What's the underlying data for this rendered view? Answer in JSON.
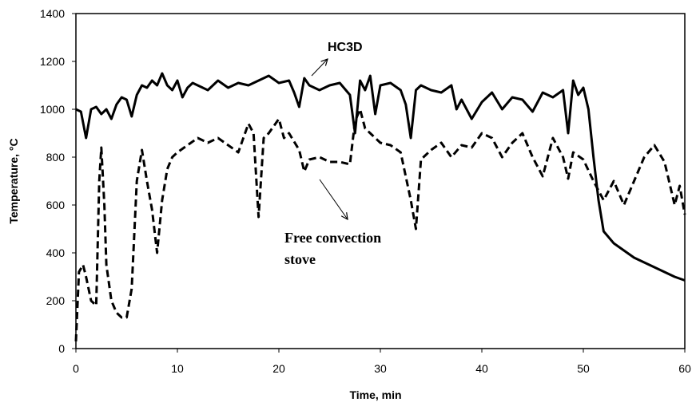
{
  "chart_data": {
    "type": "line",
    "x_label": "Time, min",
    "y_label": "Temperature, °C",
    "xlim": [
      0,
      60
    ],
    "xticks": [
      0,
      10,
      20,
      30,
      40,
      50,
      60
    ],
    "ylim": [
      0,
      1400
    ],
    "yticks": [
      0,
      200,
      400,
      600,
      800,
      1000,
      1200,
      1400
    ],
    "grid": false,
    "series": [
      {
        "name": "HC3D",
        "color": "#000000",
        "dash": "solid",
        "x": [
          0,
          0.5,
          1,
          1.5,
          2,
          2.5,
          3,
          3.5,
          4,
          4.5,
          5,
          5.5,
          6,
          6.5,
          7,
          7.5,
          8,
          8.5,
          9,
          9.5,
          10,
          10.5,
          11,
          11.5,
          12,
          13,
          14,
          15,
          16,
          17,
          18,
          19,
          20,
          21,
          21.5,
          22,
          22.5,
          23,
          24,
          25,
          26,
          27,
          27.5,
          28,
          28.5,
          29,
          29.5,
          30,
          31,
          32,
          32.5,
          33,
          33.5,
          34,
          35,
          36,
          37,
          37.5,
          38,
          39,
          40,
          41,
          42,
          43,
          44,
          45,
          46,
          47,
          48,
          48.5,
          49,
          49.5,
          50,
          50.5,
          51,
          51.5,
          52,
          53,
          54,
          55,
          56,
          57,
          58,
          59,
          60
        ],
        "values": [
          1000,
          990,
          880,
          1000,
          1010,
          980,
          1000,
          960,
          1020,
          1050,
          1040,
          970,
          1060,
          1100,
          1090,
          1120,
          1100,
          1150,
          1100,
          1080,
          1120,
          1050,
          1090,
          1110,
          1100,
          1080,
          1120,
          1090,
          1110,
          1100,
          1120,
          1140,
          1110,
          1120,
          1070,
          1010,
          1130,
          1100,
          1080,
          1100,
          1110,
          1060,
          900,
          1120,
          1080,
          1140,
          980,
          1100,
          1110,
          1080,
          1020,
          880,
          1080,
          1100,
          1080,
          1070,
          1100,
          1000,
          1040,
          960,
          1030,
          1070,
          1000,
          1050,
          1040,
          990,
          1070,
          1050,
          1080,
          900,
          1120,
          1060,
          1090,
          1000,
          800,
          620,
          490,
          440,
          410,
          380,
          360,
          340,
          320,
          300,
          285
        ]
      },
      {
        "name": "Free convection stove",
        "color": "#000000",
        "dash": "dashed",
        "x": [
          0,
          0.3,
          0.7,
          1,
          1.5,
          2,
          2.3,
          2.5,
          2.8,
          3,
          3.5,
          4,
          4.5,
          5,
          5.5,
          6,
          6.5,
          7,
          7.5,
          8,
          8.5,
          9,
          9.5,
          10,
          11,
          12,
          13,
          14,
          15,
          16,
          17,
          17.5,
          18,
          18.5,
          19,
          20,
          20.5,
          21,
          22,
          22.5,
          23,
          24,
          25,
          26,
          27,
          27.5,
          28,
          28.5,
          29,
          30,
          31,
          32,
          33,
          33.5,
          34,
          35,
          36,
          37,
          38,
          39,
          40,
          41,
          42,
          43,
          44,
          45,
          46,
          47,
          48,
          48.5,
          49,
          50,
          51,
          52,
          53,
          54,
          55,
          56,
          57,
          58,
          59,
          59.5,
          60
        ],
        "values": [
          30,
          320,
          350,
          300,
          200,
          180,
          700,
          840,
          600,
          350,
          200,
          150,
          130,
          130,
          250,
          700,
          830,
          700,
          580,
          400,
          620,
          750,
          800,
          820,
          850,
          880,
          860,
          880,
          850,
          820,
          940,
          900,
          550,
          880,
          900,
          960,
          880,
          900,
          830,
          740,
          790,
          800,
          780,
          780,
          770,
          950,
          1000,
          920,
          900,
          860,
          850,
          820,
          620,
          500,
          790,
          830,
          860,
          800,
          850,
          840,
          900,
          880,
          800,
          860,
          900,
          800,
          720,
          880,
          800,
          710,
          820,
          790,
          700,
          620,
          700,
          600,
          700,
          800,
          850,
          780,
          600,
          680,
          560
        ]
      }
    ],
    "annotations": [
      {
        "text": "HC3D"
      },
      {
        "lines": [
          "Free convection",
          "stove"
        ]
      }
    ]
  }
}
